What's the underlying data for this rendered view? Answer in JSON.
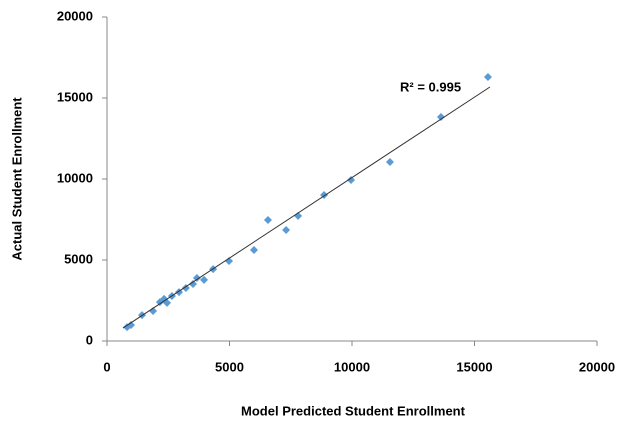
{
  "chart_data": {
    "type": "scatter",
    "x_label": "Model Predicted Student Enrollment",
    "y_label": "Actual Student Enrollment",
    "x": [
      820,
      980,
      1430,
      1880,
      2160,
      2330,
      2450,
      2650,
      2940,
      3220,
      3510,
      3670,
      3960,
      4330,
      4980,
      6000,
      6570,
      7310,
      7800,
      8860,
      9960,
      11550,
      13630,
      15550
    ],
    "values": [
      860,
      990,
      1600,
      1850,
      2400,
      2600,
      2350,
      2780,
      3020,
      3270,
      3520,
      3890,
      3770,
      4440,
      4940,
      5620,
      7470,
      6850,
      7720,
      9010,
      9940,
      11050,
      13830,
      16300
    ],
    "color": "#5b9bd5",
    "trendline": {
      "x": [
        650,
        15630
      ],
      "y": [
        800,
        15680
      ],
      "color": "#333333"
    },
    "annotation": "R² = 0.995",
    "xlim": [
      0,
      20000
    ],
    "xticks": [
      0,
      5000,
      10000,
      15000,
      20000
    ],
    "ylim": [
      0,
      20000
    ],
    "yticks": [
      0,
      5000,
      10000,
      15000,
      20000
    ],
    "grid": false
  }
}
